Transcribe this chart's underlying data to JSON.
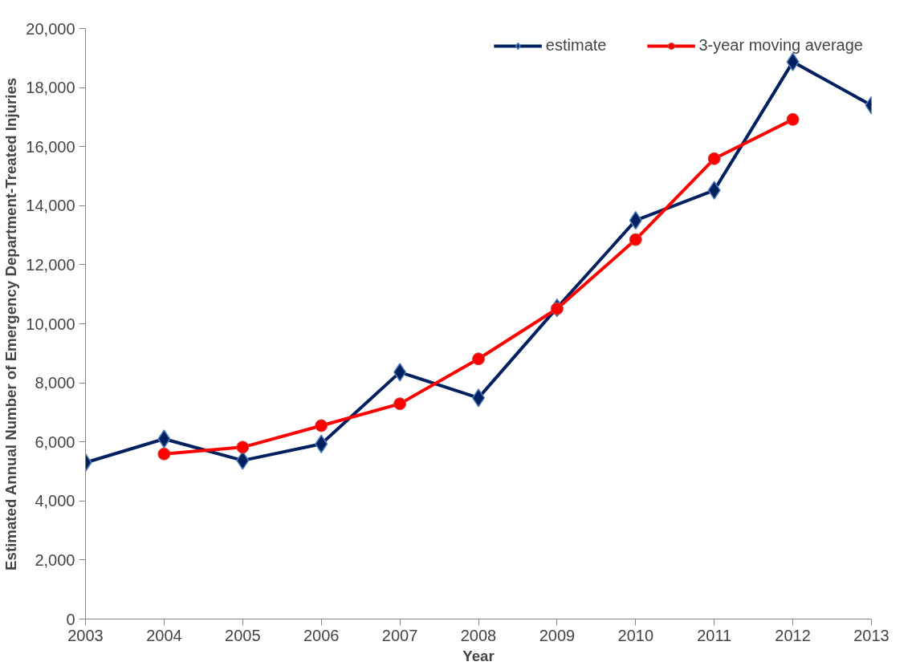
{
  "chart_data": {
    "type": "line",
    "xlabel": "Year",
    "ylabel": "Estimated Annual Number of Emergency Department-Treated Injuries",
    "x": [
      2003,
      2004,
      2005,
      2006,
      2007,
      2008,
      2009,
      2010,
      2011,
      2012,
      2013
    ],
    "xlim": [
      2003,
      2013
    ],
    "xticks": [
      2003,
      2004,
      2005,
      2006,
      2007,
      2008,
      2009,
      2010,
      2011,
      2012,
      2013
    ],
    "ylim": [
      0,
      20000
    ],
    "yticks": [
      {
        "value": 0,
        "label": "0"
      },
      {
        "value": 2000,
        "label": "2,000"
      },
      {
        "value": 4000,
        "label": "4,000"
      },
      {
        "value": 6000,
        "label": "6,000"
      },
      {
        "value": 8000,
        "label": "8,000"
      },
      {
        "value": 10000,
        "label": "10,000"
      },
      {
        "value": 12000,
        "label": "12,000"
      },
      {
        "value": 14000,
        "label": "14,000"
      },
      {
        "value": 16000,
        "label": "16,000"
      },
      {
        "value": 18000,
        "label": "18,000"
      },
      {
        "value": 20000,
        "label": "20,000"
      }
    ],
    "grid": false,
    "legend": "top right",
    "line_style": "solid",
    "series": [
      {
        "name": "estimate",
        "color": "#002060",
        "marker": "diamond",
        "values": [
          5300,
          6100,
          5370,
          5930,
          8360,
          7490,
          10540,
          13500,
          14520,
          18870,
          17400
        ]
      },
      {
        "name": "3-year moving average",
        "color": "#ff0000",
        "marker": "circle",
        "values": [
          null,
          5590,
          5820,
          6550,
          7290,
          8810,
          10510,
          12850,
          15590,
          16920,
          null
        ]
      }
    ]
  }
}
